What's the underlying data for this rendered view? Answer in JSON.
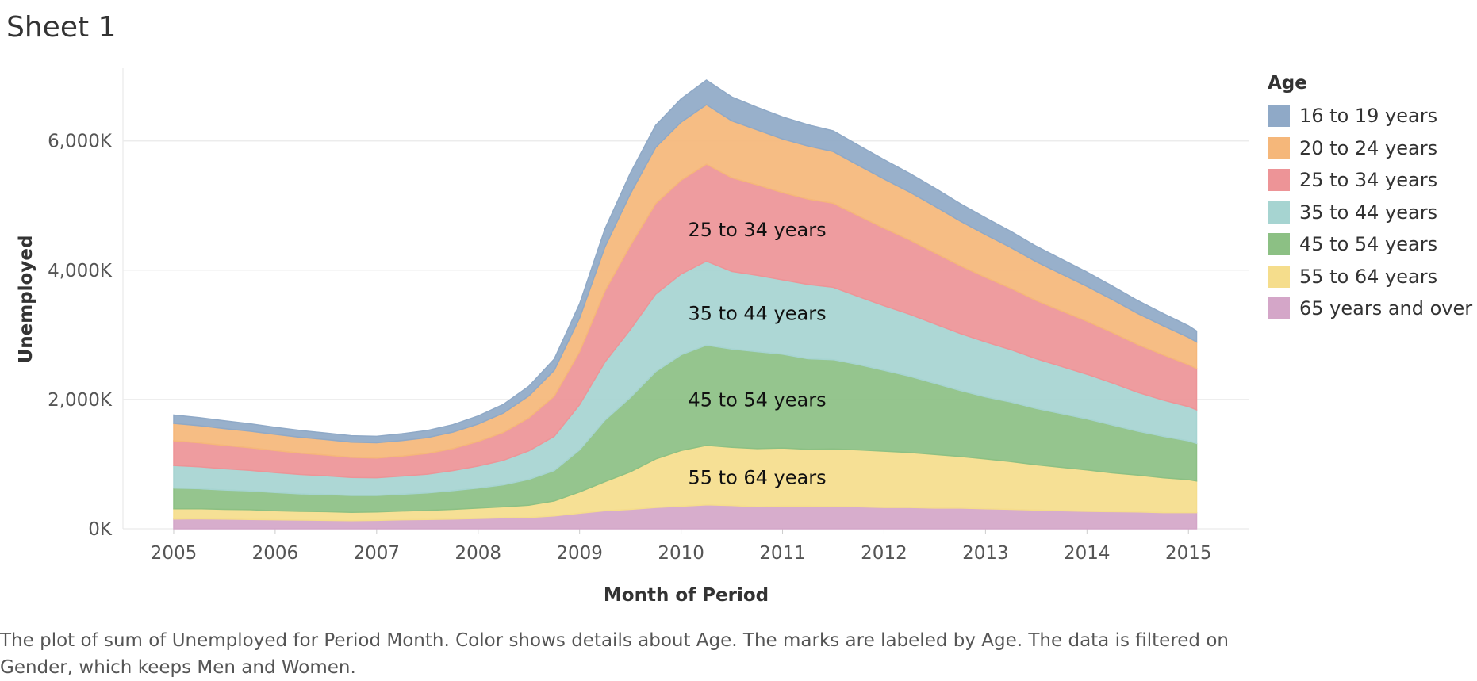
{
  "sheet_title": "Sheet 1",
  "caption": "The plot of sum of Unemployed for Period Month.  Color shows details about Age.  The marks are labeled by Age. The data is filtered on Gender, which keeps Men and Women.",
  "legend": {
    "title": "Age"
  },
  "chart_data": {
    "type": "area",
    "stacked": true,
    "xlabel": "Month of Period",
    "ylabel": "Unemployed",
    "x_ticks": [
      "2005",
      "2006",
      "2007",
      "2008",
      "2009",
      "2010",
      "2011",
      "2012",
      "2013",
      "2014",
      "2015"
    ],
    "y_ticks": [
      "0K",
      "2,000K",
      "4,000K",
      "6,000K"
    ],
    "y_tick_values": [
      0,
      2000,
      4000,
      6000
    ],
    "ylim": [
      0,
      7100
    ],
    "xlim": [
      2004.5,
      2015.6
    ],
    "units": "thousands",
    "grid": "horizontal",
    "legend_position": "right",
    "x": [
      2005.0,
      2005.25,
      2005.5,
      2005.75,
      2006.0,
      2006.25,
      2006.5,
      2006.75,
      2007.0,
      2007.25,
      2007.5,
      2007.75,
      2008.0,
      2008.25,
      2008.5,
      2008.75,
      2009.0,
      2009.25,
      2009.5,
      2009.75,
      2010.0,
      2010.25,
      2010.5,
      2010.75,
      2011.0,
      2011.25,
      2011.5,
      2011.75,
      2012.0,
      2012.25,
      2012.5,
      2012.75,
      2013.0,
      2013.25,
      2013.5,
      2013.75,
      2014.0,
      2014.25,
      2014.5,
      2014.75,
      2015.0,
      2015.08
    ],
    "series": [
      {
        "name": "65 years and over",
        "color": "#d4a6c8",
        "values": [
          150,
          155,
          150,
          145,
          140,
          135,
          130,
          125,
          130,
          140,
          145,
          150,
          160,
          170,
          175,
          200,
          240,
          280,
          300,
          330,
          350,
          370,
          360,
          340,
          350,
          350,
          345,
          340,
          330,
          330,
          320,
          320,
          310,
          300,
          290,
          280,
          270,
          265,
          260,
          250,
          250,
          250
        ]
      },
      {
        "name": "55 to 64 years",
        "color": "#f5dd8c",
        "values": [
          160,
          155,
          150,
          150,
          140,
          135,
          135,
          130,
          130,
          135,
          140,
          150,
          160,
          170,
          190,
          230,
          330,
          450,
          580,
          750,
          860,
          920,
          900,
          900,
          900,
          880,
          890,
          880,
          870,
          850,
          830,
          800,
          770,
          740,
          700,
          670,
          640,
          600,
          570,
          540,
          510,
          490
        ]
      },
      {
        "name": "45 to 54 years",
        "color": "#8cc084",
        "values": [
          320,
          310,
          300,
          290,
          280,
          270,
          265,
          260,
          255,
          260,
          270,
          290,
          310,
          340,
          400,
          470,
          650,
          950,
          1150,
          1350,
          1480,
          1550,
          1520,
          1500,
          1450,
          1400,
          1380,
          1320,
          1250,
          1180,
          1100,
          1020,
          960,
          920,
          870,
          830,
          790,
          740,
          680,
          640,
          600,
          580
        ]
      },
      {
        "name": "35 to 44 years",
        "color": "#a6d4d1",
        "values": [
          350,
          340,
          330,
          320,
          310,
          300,
          290,
          280,
          275,
          280,
          290,
          310,
          340,
          380,
          440,
          530,
          700,
          900,
          1050,
          1200,
          1250,
          1300,
          1200,
          1180,
          1150,
          1150,
          1120,
          1050,
          1000,
          960,
          920,
          880,
          850,
          810,
          770,
          730,
          690,
          650,
          600,
          560,
          530,
          520
        ]
      },
      {
        "name": "25 to 34 years",
        "color": "#ed9497",
        "values": [
          380,
          370,
          360,
          350,
          340,
          330,
          320,
          310,
          305,
          310,
          320,
          340,
          380,
          430,
          510,
          620,
          820,
          1100,
          1300,
          1400,
          1450,
          1500,
          1450,
          1400,
          1350,
          1320,
          1300,
          1250,
          1200,
          1150,
          1100,
          1050,
          1000,
          950,
          900,
          860,
          820,
          780,
          740,
          700,
          650,
          640
        ]
      },
      {
        "name": "20 to 24 years",
        "color": "#f5b77a",
        "values": [
          270,
          265,
          260,
          255,
          250,
          245,
          240,
          235,
          235,
          240,
          245,
          255,
          270,
          300,
          340,
          400,
          520,
          680,
          800,
          870,
          900,
          920,
          880,
          850,
          830,
          820,
          800,
          780,
          760,
          740,
          720,
          690,
          660,
          630,
          600,
          570,
          540,
          510,
          480,
          450,
          420,
          410
        ]
      },
      {
        "name": "16 to 19 years",
        "color": "#8fa9c7",
        "values": [
          130,
          125,
          120,
          115,
          110,
          105,
          100,
          100,
          100,
          105,
          110,
          115,
          125,
          135,
          150,
          175,
          220,
          280,
          320,
          340,
          360,
          380,
          370,
          350,
          340,
          330,
          320,
          310,
          300,
          290,
          280,
          270,
          260,
          250,
          240,
          230,
          220,
          210,
          200,
          190,
          180,
          170
        ]
      }
    ],
    "mark_labels": [
      "25 to 34 years",
      "35 to 44 years",
      "45 to 54 years",
      "55 to 64 years"
    ]
  }
}
